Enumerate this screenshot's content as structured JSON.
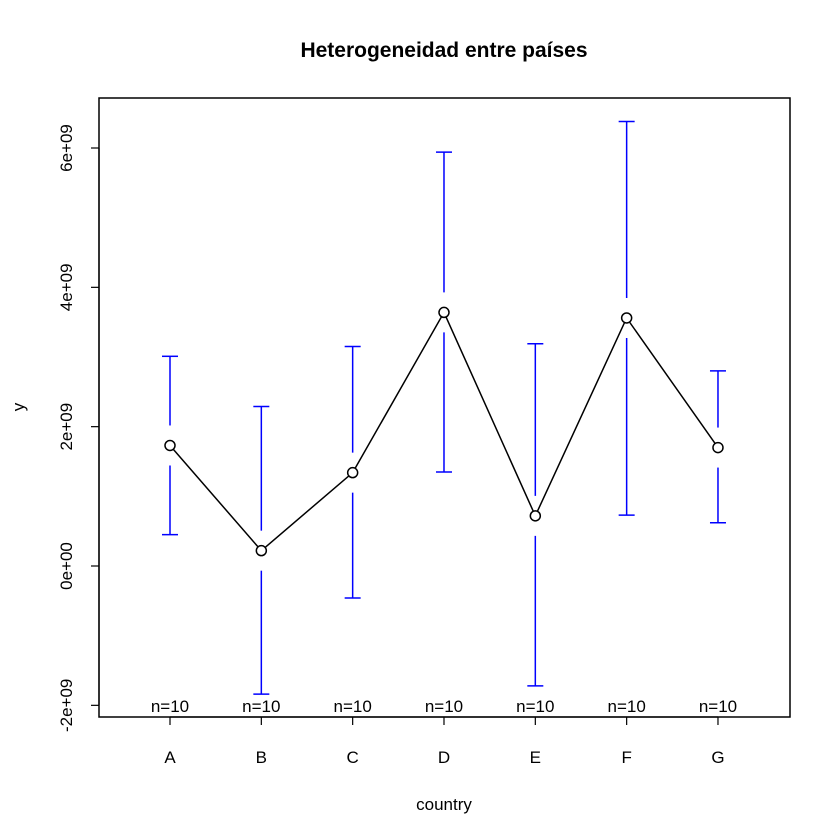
{
  "chart_data": {
    "type": "line",
    "title": "Heterogeneidad entre países",
    "xlabel": "country",
    "ylabel": "y",
    "categories": [
      "A",
      "B",
      "C",
      "D",
      "E",
      "F",
      "G"
    ],
    "series": [
      {
        "values": [
          1730000000.0,
          220000000.0,
          1340000000.0,
          3640000000.0,
          720000000.0,
          3560000000.0,
          1700000000.0
        ],
        "ci_lower": [
          450000000.0,
          -1840000000.0,
          -460000000.0,
          1350000000.0,
          -1720000000.0,
          730000000.0,
          620000000.0
        ],
        "ci_upper": [
          3010000000.0,
          2290000000.0,
          3150000000.0,
          5940000000.0,
          3190000000.0,
          6380000000.0,
          2800000000.0
        ]
      }
    ],
    "counts": [
      "n=10",
      "n=10",
      "n=10",
      "n=10",
      "n=10",
      "n=10",
      "n=10"
    ],
    "y_ticks": [
      -2000000000.0,
      0,
      2000000000.0,
      4000000000.0,
      6000000000.0
    ],
    "y_tick_labels": [
      "-2e+09",
      "0e+00",
      "2e+09",
      "4e+09",
      "6e+09"
    ],
    "ylim": [
      -2200000000.0,
      6700000000.0
    ],
    "grid": false,
    "legend": "none",
    "colors": {
      "error_bars": "#0000ff",
      "line": "#000000",
      "points": "#000000",
      "axes": "#000000"
    }
  }
}
